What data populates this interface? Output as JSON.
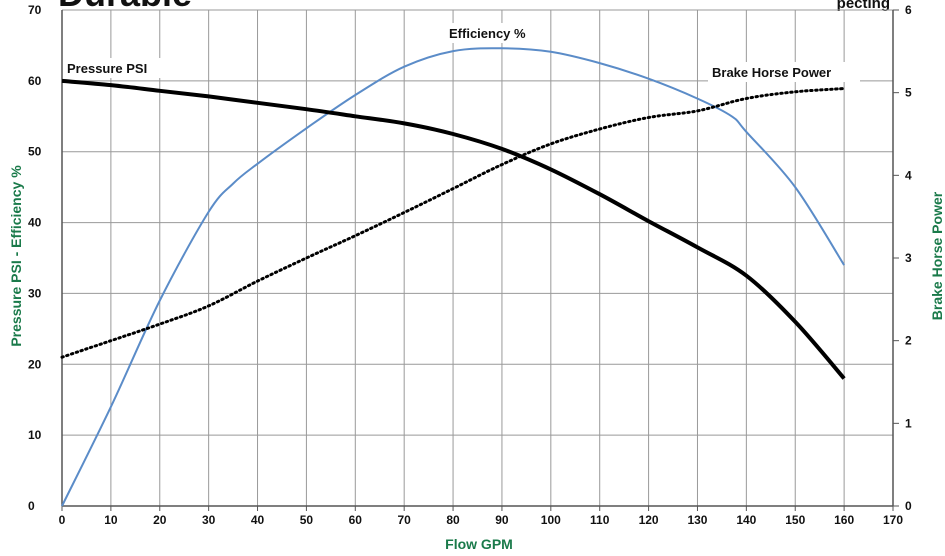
{
  "header": {
    "partial_title_left": "Durable",
    "partial_title_right": "pecting"
  },
  "colors": {
    "axis_title": "#1a7a4a",
    "grid": "#999999",
    "pressure": "#000000",
    "efficiency": "#5b8cc8",
    "bhp": "#000000"
  },
  "chart_data": {
    "type": "line",
    "xlabel": "Flow GPM",
    "ylabel_left": "Pressure PSI - Efficiency %",
    "ylabel_right": "Brake Horse Power",
    "xlim": [
      0,
      170
    ],
    "ylim_left": [
      0,
      70
    ],
    "ylim_right": [
      0,
      6
    ],
    "x_ticks": [
      "0",
      "10",
      "20",
      "30",
      "40",
      "50",
      "60",
      "70",
      "80",
      "90",
      "100",
      "110",
      "120",
      "130",
      "140",
      "150",
      "160",
      "170"
    ],
    "y_left_ticks": [
      "0",
      "10",
      "20",
      "30",
      "40",
      "50",
      "60",
      "70"
    ],
    "y_right_ticks": [
      "0",
      "1",
      "2",
      "3",
      "4",
      "5",
      "6"
    ],
    "grid": true,
    "series": [
      {
        "name": "Pressure PSI",
        "axis": "left",
        "style": "solid-thick",
        "points": [
          [
            0,
            60
          ],
          [
            10,
            59.4
          ],
          [
            20,
            58.6
          ],
          [
            30,
            57.8
          ],
          [
            40,
            56.9
          ],
          [
            50,
            56
          ],
          [
            60,
            55
          ],
          [
            70,
            54
          ],
          [
            80,
            52.5
          ],
          [
            90,
            50.4
          ],
          [
            100,
            47.5
          ],
          [
            110,
            44
          ],
          [
            120,
            40.2
          ],
          [
            130,
            36.5
          ],
          [
            140,
            32.5
          ],
          [
            150,
            26
          ],
          [
            160,
            18
          ]
        ]
      },
      {
        "name": "Efficiency %",
        "axis": "left",
        "style": "solid-thin",
        "points": [
          [
            0,
            0
          ],
          [
            10,
            14
          ],
          [
            20,
            29
          ],
          [
            30,
            41.5
          ],
          [
            35,
            45.5
          ],
          [
            40,
            48.3
          ],
          [
            50,
            53.3
          ],
          [
            60,
            58
          ],
          [
            70,
            62
          ],
          [
            80,
            64.2
          ],
          [
            90,
            64.6
          ],
          [
            100,
            64.1
          ],
          [
            110,
            62.5
          ],
          [
            120,
            60.3
          ],
          [
            130,
            57.5
          ],
          [
            137,
            55
          ],
          [
            140,
            52.8
          ],
          [
            150,
            45
          ],
          [
            160,
            34
          ]
        ]
      },
      {
        "name": "Brake Horse Power",
        "axis": "right",
        "style": "dotted",
        "points": [
          [
            0,
            1.8
          ],
          [
            10,
            2.0
          ],
          [
            20,
            2.2
          ],
          [
            30,
            2.42
          ],
          [
            40,
            2.72
          ],
          [
            50,
            3.0
          ],
          [
            60,
            3.27
          ],
          [
            70,
            3.55
          ],
          [
            80,
            3.84
          ],
          [
            90,
            4.13
          ],
          [
            100,
            4.38
          ],
          [
            110,
            4.56
          ],
          [
            120,
            4.7
          ],
          [
            130,
            4.78
          ],
          [
            140,
            4.93
          ],
          [
            150,
            5.01
          ],
          [
            160,
            5.05
          ]
        ]
      }
    ]
  }
}
